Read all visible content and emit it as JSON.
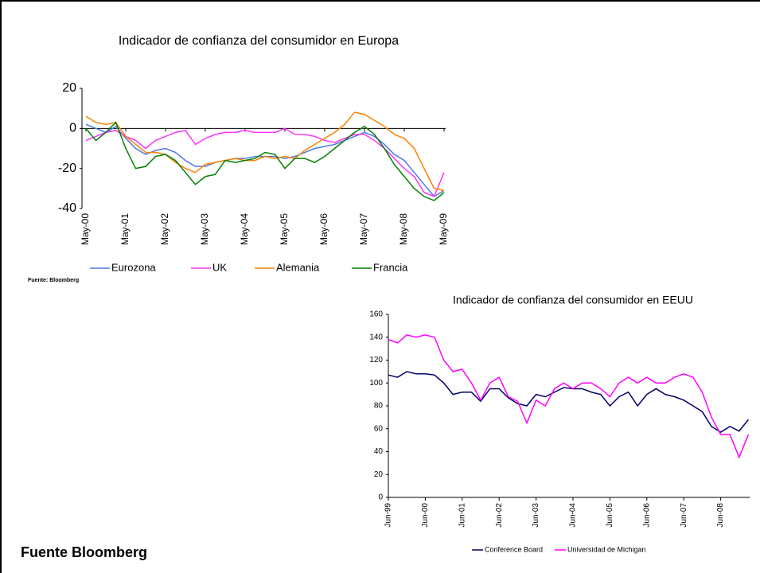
{
  "chart_data": [
    {
      "type": "line",
      "title": "Indicador de confianza del consumidor en Europa",
      "source": "Fuente: Bloomberg",
      "categories": [
        "May-00",
        null,
        null,
        null,
        "May-01",
        null,
        null,
        null,
        "May-02",
        null,
        null,
        null,
        "May-03",
        null,
        null,
        null,
        "May-04",
        null,
        null,
        null,
        "May-05",
        null,
        null,
        null,
        "May-06",
        null,
        null,
        null,
        "May-07",
        null,
        null,
        null,
        "May-08",
        null,
        null,
        null,
        "May-09"
      ],
      "ylim": [
        -40,
        20
      ],
      "yticks": [
        -40,
        -20,
        0,
        20
      ],
      "series": [
        {
          "name": "Eurozona",
          "color": "#4d79e6",
          "values": [
            2,
            0,
            -2,
            1,
            -5,
            -10,
            -13,
            -11,
            -10,
            -12,
            -16,
            -19,
            -19,
            -17,
            -16,
            -15,
            -15,
            -14,
            -14,
            -14,
            -15,
            -14,
            -12,
            -10,
            -9,
            -8,
            -6,
            -4,
            -2,
            -4,
            -8,
            -13,
            -16,
            -22,
            -28,
            -34,
            -31
          ]
        },
        {
          "name": "UK",
          "color": "#ff33ff",
          "values": [
            -6,
            -4,
            -2,
            -1,
            -4,
            -6,
            -10,
            -6,
            -4,
            -2,
            -1,
            -8,
            -5,
            -3,
            -2,
            -2,
            -1,
            -2,
            -2,
            -2,
            0,
            -3,
            -3,
            -4,
            -6,
            -7,
            -5,
            -3,
            -3,
            -6,
            -10,
            -15,
            -20,
            -24,
            -32,
            -34,
            -22
          ]
        },
        {
          "name": "Alemania",
          "color": "#ff8000",
          "values": [
            6,
            3,
            2,
            3,
            -4,
            -8,
            -12,
            -12,
            -13,
            -17,
            -20,
            -22,
            -18,
            -17,
            -16,
            -15,
            -16,
            -16,
            -14,
            -15,
            -14,
            -15,
            -11,
            -8,
            -5,
            -2,
            2,
            8,
            7,
            4,
            1,
            -3,
            -5,
            -10,
            -20,
            -30,
            -31
          ]
        },
        {
          "name": "Francia",
          "color": "#008000",
          "values": [
            0,
            -6,
            -2,
            3,
            -10,
            -20,
            -19,
            -14,
            -13,
            -16,
            -22,
            -28,
            -24,
            -23,
            -16,
            -17,
            -16,
            -15,
            -12,
            -13,
            -20,
            -15,
            -15,
            -17,
            -14,
            -10,
            -6,
            -2,
            1,
            -3,
            -10,
            -18,
            -24,
            -30,
            -34,
            -36,
            -32
          ]
        }
      ]
    },
    {
      "type": "line",
      "title": "Indicador de confianza del consumidor en EEUU",
      "categories": [
        "Jun-99",
        null,
        null,
        null,
        "Jun-00",
        null,
        null,
        null,
        "Jun-01",
        null,
        null,
        null,
        "Jun-02",
        null,
        null,
        null,
        "Jun-03",
        null,
        null,
        null,
        "Jun-04",
        null,
        null,
        null,
        "Jun-05",
        null,
        null,
        null,
        "Jun-06",
        null,
        null,
        null,
        "Jun-07",
        null,
        null,
        null,
        "Jun-08",
        null,
        null,
        null
      ],
      "ylim": [
        0,
        160
      ],
      "yticks": [
        0,
        20,
        40,
        60,
        80,
        100,
        120,
        140,
        160
      ],
      "series": [
        {
          "name": "Conference Board",
          "color": "#000066",
          "values": [
            107,
            105,
            110,
            108,
            108,
            107,
            100,
            90,
            92,
            92,
            84,
            95,
            95,
            87,
            82,
            80,
            90,
            88,
            92,
            96,
            95,
            95,
            92,
            90,
            80,
            88,
            92,
            80,
            90,
            95,
            90,
            88,
            85,
            80,
            75,
            62,
            57,
            62,
            58,
            68
          ]
        },
        {
          "name": "Universidad de Michigan",
          "color": "#ff00ff",
          "values": [
            138,
            135,
            142,
            140,
            142,
            140,
            120,
            110,
            112,
            100,
            85,
            100,
            105,
            88,
            84,
            65,
            85,
            80,
            95,
            100,
            95,
            100,
            100,
            95,
            88,
            100,
            105,
            100,
            105,
            100,
            100,
            105,
            108,
            105,
            92,
            70,
            55,
            55,
            35,
            55
          ]
        }
      ]
    }
  ],
  "footer": "Fuente Bloomberg"
}
